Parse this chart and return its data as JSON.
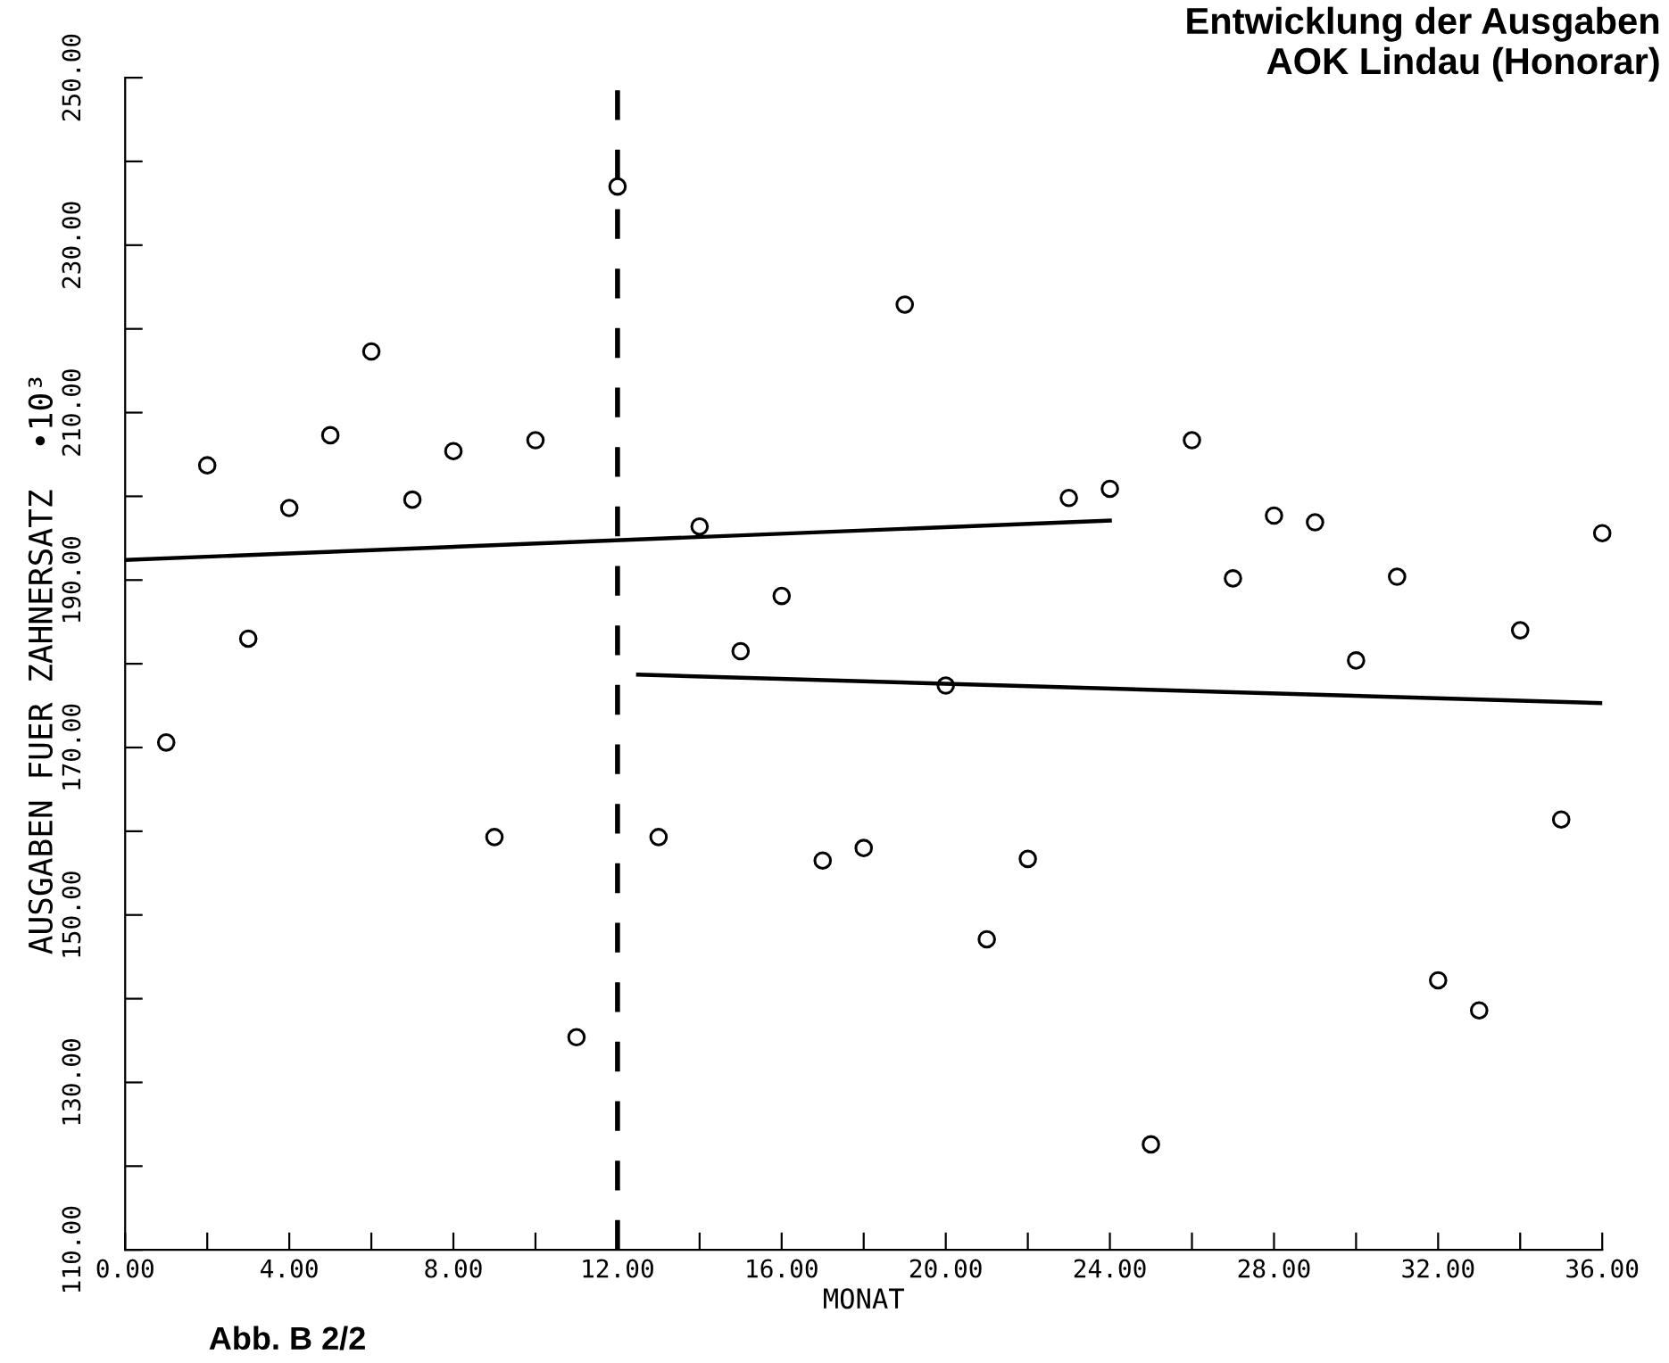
{
  "chart_data": {
    "type": "scatter",
    "title": "Entwicklung der Ausgaben\nAOK Lindau (Honorar)",
    "xlabel": "MONAT",
    "ylabel": "AUSGABEN FUER ZAHNERSATZ  •10³",
    "annotations": [
      "Abb. B 2/2"
    ],
    "xlim": [
      0,
      36
    ],
    "ylim": [
      110,
      250
    ],
    "xticks": [
      {
        "value": 0,
        "label": "0.00"
      },
      {
        "value": 2,
        "label": null
      },
      {
        "value": 4,
        "label": "4.00"
      },
      {
        "value": 6,
        "label": null
      },
      {
        "value": 8,
        "label": "8.00"
      },
      {
        "value": 10,
        "label": null
      },
      {
        "value": 12,
        "label": "12.00"
      },
      {
        "value": 14,
        "label": null
      },
      {
        "value": 16,
        "label": "16.00"
      },
      {
        "value": 18,
        "label": null
      },
      {
        "value": 20,
        "label": "20.00"
      },
      {
        "value": 22,
        "label": null
      },
      {
        "value": 24,
        "label": "24.00"
      },
      {
        "value": 26,
        "label": null
      },
      {
        "value": 28,
        "label": "28.00"
      },
      {
        "value": 30,
        "label": null
      },
      {
        "value": 32,
        "label": "32.00"
      },
      {
        "value": 34,
        "label": null
      },
      {
        "value": 36,
        "label": "36.00"
      }
    ],
    "yticks": [
      {
        "value": 110,
        "label": "110.00"
      },
      {
        "value": 120,
        "label": null
      },
      {
        "value": 130,
        "label": "130.00"
      },
      {
        "value": 140,
        "label": null
      },
      {
        "value": 150,
        "label": "150.00"
      },
      {
        "value": 160,
        "label": null
      },
      {
        "value": 170,
        "label": "170.00"
      },
      {
        "value": 180,
        "label": null
      },
      {
        "value": 190,
        "label": "190.00"
      },
      {
        "value": 200,
        "label": null
      },
      {
        "value": 210,
        "label": "210.00"
      },
      {
        "value": 220,
        "label": null
      },
      {
        "value": 230,
        "label": "230.00"
      },
      {
        "value": 240,
        "label": null
      },
      {
        "value": 250,
        "label": "250.00"
      }
    ],
    "grid": false,
    "legend": false,
    "ref_lines": [
      {
        "axis": "x",
        "value": 12,
        "line_style": "dashed",
        "color": "#000000"
      }
    ],
    "series": [
      {
        "marker": "circle",
        "color": "#000000",
        "x": [
          1,
          2,
          3,
          4,
          5,
          6,
          7,
          8,
          9,
          10,
          11,
          12,
          13,
          14,
          15,
          16,
          17,
          18,
          19,
          20,
          21,
          22,
          23,
          24,
          25,
          26,
          27,
          28,
          29,
          30,
          31,
          32,
          33,
          34,
          35,
          36
        ],
        "values": [
          170.6,
          203.7,
          183,
          198.6,
          207.3,
          217.3,
          199.6,
          205.4,
          159.3,
          206.7,
          135.4,
          237,
          159.3,
          196.4,
          181.5,
          188.1,
          156.5,
          158,
          222.9,
          177.4,
          147.1,
          156.7,
          199.8,
          200.9,
          122.6,
          206.7,
          190.2,
          197.7,
          196.9,
          180.4,
          190.4,
          142.2,
          138.6,
          184,
          161.4,
          195.6
        ]
      },
      {
        "type": "line",
        "color": "#000000",
        "x": [
          0,
          24
        ],
        "values": [
          192.4,
          197.1
        ]
      },
      {
        "type": "line",
        "color": "#000000",
        "x": [
          12.5,
          36
        ],
        "values": [
          178.7,
          175.3
        ]
      }
    ]
  }
}
